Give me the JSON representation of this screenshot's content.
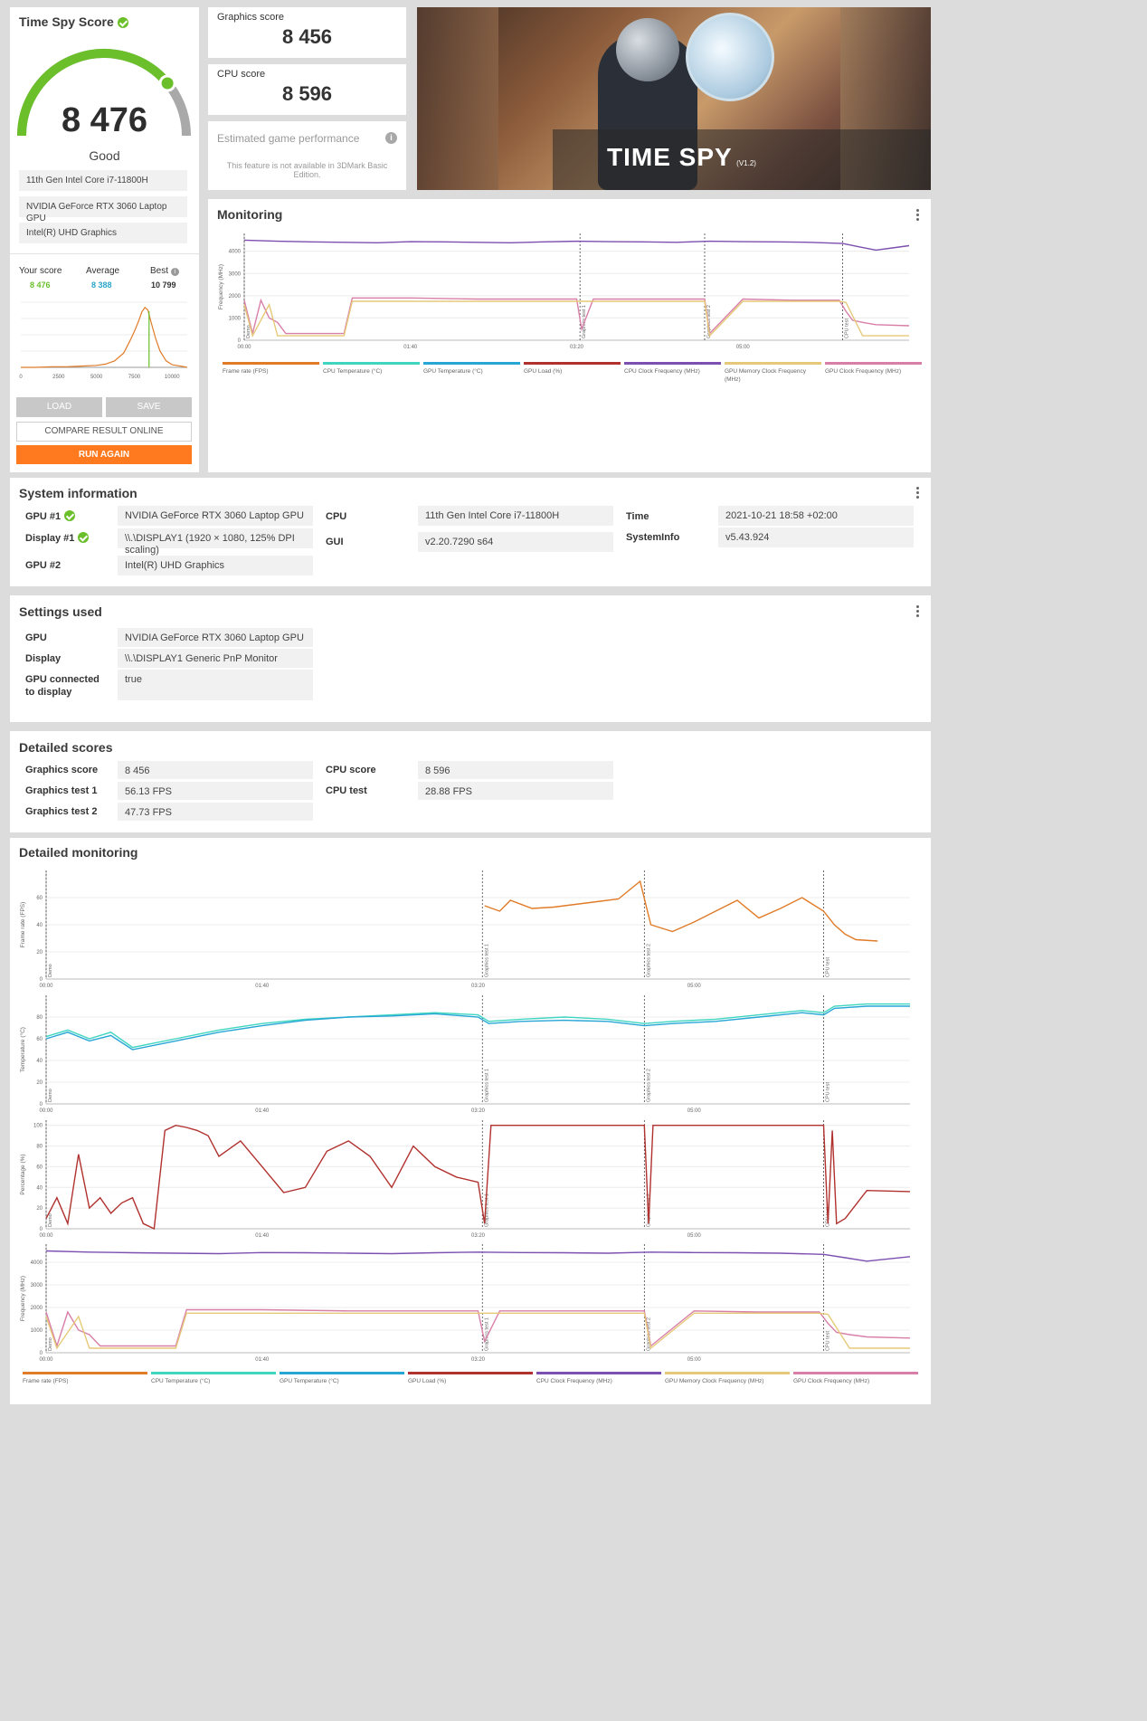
{
  "summary": {
    "title": "Time Spy Score",
    "score": "8 476",
    "rating": "Good",
    "gauge_fraction": 0.78,
    "hardware": [
      "11th Gen Intel Core i7-11800H",
      "NVIDIA GeForce RTX 3060 Laptop GPU",
      "Intel(R) UHD Graphics"
    ],
    "your_score_label": "Your score",
    "your_score": "8 476",
    "average_label": "Average",
    "average": "8 388",
    "best_label": "Best",
    "best": "10 799",
    "buttons": {
      "load": "LOAD",
      "save": "SAVE",
      "compare": "COMPARE RESULT ONLINE",
      "run_again": "RUN AGAIN"
    },
    "colors": {
      "green": "#6abf2a",
      "teal": "#2aa6c8",
      "orange": "#ff7a1f"
    }
  },
  "distribution": {
    "x_ticks": [
      "0",
      "2500",
      "5000",
      "7500",
      "10000"
    ],
    "x_range": [
      0,
      11000
    ],
    "points": [
      [
        0,
        0
      ],
      [
        1000,
        0
      ],
      [
        2000,
        0.01
      ],
      [
        3000,
        0.01
      ],
      [
        4000,
        0.02
      ],
      [
        5000,
        0.03
      ],
      [
        5600,
        0.05
      ],
      [
        6200,
        0.1
      ],
      [
        6800,
        0.22
      ],
      [
        7200,
        0.4
      ],
      [
        7500,
        0.55
      ],
      [
        7800,
        0.72
      ],
      [
        8000,
        0.85
      ],
      [
        8200,
        0.92
      ],
      [
        8400,
        0.88
      ],
      [
        8600,
        0.7
      ],
      [
        8900,
        0.45
      ],
      [
        9200,
        0.25
      ],
      [
        9600,
        0.1
      ],
      [
        10000,
        0.04
      ],
      [
        10800,
        0.01
      ],
      [
        11000,
        0
      ]
    ],
    "marker": 8476
  },
  "graphics_score": {
    "label": "Graphics score",
    "value": "8 456"
  },
  "cpu_score": {
    "label": "CPU score",
    "value": "8 596"
  },
  "game_perf": {
    "title": "Estimated game performance",
    "note": "This feature is not available in 3DMark Basic Edition."
  },
  "banner": {
    "title": "TIME SPY",
    "version": "(V1.2)"
  },
  "monitoring": {
    "title": "Monitoring",
    "y_label": "Frequency (MHz)",
    "y_ticks": [
      "0",
      "1000",
      "2000",
      "3000",
      "4000"
    ],
    "y_max": 4800,
    "x_ticks": [
      "00:00",
      "01:40",
      "03:20",
      "05:00"
    ],
    "x_max": 400,
    "sections": [
      "Demo",
      "Graphics test 1",
      "Graphics test 2",
      "CPU test"
    ],
    "section_times": [
      0,
      202,
      277,
      360
    ],
    "legend": [
      "Frame rate (FPS)",
      "CPU Temperature (°C)",
      "GPU Temperature (°C)",
      "GPU Load (%)",
      "CPU Clock Frequency (MHz)",
      "GPU Memory Clock Frequency (MHz)",
      "GPU Clock Frequency (MHz)"
    ],
    "legend_colors": [
      "#e07b28",
      "#3fd5c0",
      "#27a6d6",
      "#b0312e",
      "#7c4fb0",
      "#e6c978",
      "#d87fa8"
    ]
  },
  "system_info": {
    "title": "System information",
    "rows": [
      {
        "label": "GPU #1",
        "check": true,
        "value": "NVIDIA GeForce RTX 3060 Laptop GPU"
      },
      {
        "label": "Display #1",
        "check": true,
        "value": "\\\\.\\DISPLAY1 (1920 × 1080, 125% DPI scaling)"
      },
      {
        "label": "GPU #2",
        "check": false,
        "value": "Intel(R) UHD Graphics"
      }
    ],
    "rows2": [
      {
        "label": "CPU",
        "value": "11th Gen Intel Core i7-11800H"
      },
      {
        "label": "GUI",
        "value": "v2.20.7290 s64"
      }
    ],
    "rows3": [
      {
        "label": "Time",
        "value": "2021-10-21 18:58 +02:00"
      },
      {
        "label": "SystemInfo",
        "value": "v5.43.924"
      }
    ]
  },
  "settings": {
    "title": "Settings used",
    "rows": [
      {
        "label": "GPU",
        "value": "NVIDIA GeForce RTX 3060 Laptop GPU"
      },
      {
        "label": "Display",
        "value": "\\\\.\\DISPLAY1 Generic PnP Monitor"
      },
      {
        "label": "GPU connected to display",
        "value": "true"
      }
    ]
  },
  "detailed_scores": {
    "title": "Detailed scores",
    "left": [
      {
        "label": "Graphics score",
        "value": "8 456"
      },
      {
        "label": "Graphics test 1",
        "value": "56.13 FPS"
      },
      {
        "label": "Graphics test 2",
        "value": "47.73 FPS"
      }
    ],
    "right": [
      {
        "label": "CPU score",
        "value": "8 596"
      },
      {
        "label": "CPU test",
        "value": "28.88 FPS"
      }
    ]
  },
  "detailed_monitoring": {
    "title": "Detailed monitoring",
    "x_ticks": [
      "00:00",
      "01:40",
      "03:20",
      "05:00"
    ],
    "charts": [
      {
        "y_label": "Frame rate (FPS)",
        "y_ticks": [
          "0",
          "20",
          "40",
          "60"
        ],
        "y_max": 80
      },
      {
        "y_label": "Temperature (°C)",
        "y_ticks": [
          "0",
          "20",
          "40",
          "60",
          "80"
        ],
        "y_max": 100
      },
      {
        "y_label": "Percentage (%)",
        "y_ticks": [
          "0",
          "20",
          "40",
          "60",
          "80",
          "100"
        ],
        "y_max": 105
      },
      {
        "y_label": "Frequency (MHz)",
        "y_ticks": [
          "0",
          "1000",
          "2000",
          "3000",
          "4000"
        ],
        "y_max": 4800
      }
    ]
  },
  "chart_data": [
    {
      "type": "line",
      "ylabel": "Frequency (MHz)",
      "x_range": [
        0,
        400
      ],
      "ylim": [
        0,
        4800
      ],
      "series": [
        {
          "name": "CPU Clock Frequency (MHz)",
          "color": "#7c4fb0",
          "x": [
            0,
            20,
            40,
            60,
            80,
            100,
            120,
            140,
            160,
            180,
            200,
            220,
            240,
            260,
            280,
            300,
            320,
            340,
            360,
            370,
            380,
            390,
            400
          ],
          "values": [
            4500,
            4450,
            4420,
            4400,
            4380,
            4430,
            4420,
            4400,
            4380,
            4420,
            4450,
            4430,
            4420,
            4400,
            4450,
            4430,
            4420,
            4400,
            4350,
            4200,
            4050,
            4150,
            4250
          ]
        },
        {
          "name": "GPU Clock Frequency (MHz)",
          "color": "#d87fa8",
          "x": [
            0,
            5,
            10,
            15,
            20,
            25,
            30,
            60,
            65,
            100,
            140,
            200,
            203,
            210,
            277,
            280,
            300,
            330,
            358,
            362,
            366,
            372,
            380,
            400
          ],
          "values": [
            1800,
            300,
            1800,
            1000,
            800,
            300,
            300,
            300,
            1900,
            1900,
            1850,
            1850,
            500,
            1850,
            1850,
            300,
            1850,
            1800,
            1800,
            1300,
            900,
            800,
            700,
            650
          ]
        },
        {
          "name": "GPU Memory Clock Frequency (MHz)",
          "color": "#e6c978",
          "x": [
            0,
            5,
            15,
            20,
            60,
            65,
            200,
            210,
            277,
            280,
            300,
            358,
            362,
            372,
            400
          ],
          "values": [
            1600,
            200,
            1600,
            200,
            200,
            1750,
            1750,
            1750,
            1750,
            200,
            1750,
            1750,
            1700,
            200,
            200
          ]
        }
      ]
    },
    {
      "type": "line",
      "ylabel": "Frame rate (FPS)",
      "x_range": [
        0,
        400
      ],
      "ylim": [
        0,
        80
      ],
      "series": [
        {
          "name": "Frame rate (FPS)",
          "color": "#e07b28",
          "x": [
            203,
            210,
            215,
            225,
            235,
            245,
            255,
            265,
            275,
            280,
            290,
            300,
            310,
            320,
            330,
            340,
            350,
            360,
            365,
            370,
            375,
            385
          ],
          "values": [
            54,
            50,
            58,
            52,
            53,
            55,
            57,
            59,
            72,
            40,
            35,
            42,
            50,
            58,
            45,
            52,
            60,
            50,
            40,
            33,
            29,
            28
          ]
        }
      ]
    },
    {
      "type": "line",
      "ylabel": "Temperature (°C)",
      "x_range": [
        0,
        400
      ],
      "ylim": [
        0,
        100
      ],
      "series": [
        {
          "name": "CPU Temperature (°C)",
          "color": "#3fd5c0",
          "x": [
            0,
            10,
            20,
            30,
            40,
            60,
            80,
            100,
            120,
            140,
            160,
            180,
            200,
            205,
            220,
            240,
            260,
            277,
            290,
            310,
            330,
            350,
            360,
            365,
            380,
            400
          ],
          "values": [
            62,
            68,
            60,
            66,
            52,
            60,
            68,
            74,
            78,
            80,
            82,
            84,
            82,
            76,
            78,
            80,
            78,
            74,
            76,
            78,
            82,
            86,
            84,
            90,
            92,
            92
          ]
        },
        {
          "name": "GPU Temperature (°C)",
          "color": "#27a6d6",
          "x": [
            0,
            10,
            20,
            30,
            40,
            60,
            80,
            100,
            120,
            140,
            160,
            180,
            200,
            205,
            220,
            240,
            260,
            277,
            290,
            310,
            330,
            350,
            360,
            365,
            380,
            400
          ],
          "values": [
            60,
            66,
            58,
            63,
            50,
            58,
            66,
            72,
            77,
            80,
            81,
            83,
            80,
            74,
            76,
            77,
            76,
            72,
            74,
            76,
            80,
            84,
            82,
            88,
            90,
            90
          ]
        }
      ]
    },
    {
      "type": "line",
      "ylabel": "Percentage (%)",
      "x_range": [
        0,
        400
      ],
      "ylim": [
        0,
        100
      ],
      "series": [
        {
          "name": "GPU Load (%)",
          "color": "#b0312e",
          "x": [
            0,
            5,
            10,
            15,
            20,
            25,
            30,
            35,
            40,
            45,
            50,
            55,
            60,
            65,
            70,
            75,
            80,
            90,
            100,
            110,
            120,
            130,
            140,
            150,
            160,
            170,
            180,
            190,
            200,
            203,
            206,
            277,
            279,
            281,
            360,
            362,
            364,
            366,
            370,
            380,
            400
          ],
          "values": [
            10,
            30,
            5,
            72,
            20,
            30,
            15,
            25,
            30,
            5,
            0,
            95,
            100,
            98,
            95,
            90,
            70,
            85,
            60,
            35,
            40,
            75,
            85,
            70,
            40,
            80,
            60,
            50,
            45,
            5,
            100,
            100,
            5,
            100,
            100,
            5,
            95,
            5,
            10,
            37,
            36
          ]
        }
      ]
    }
  ]
}
